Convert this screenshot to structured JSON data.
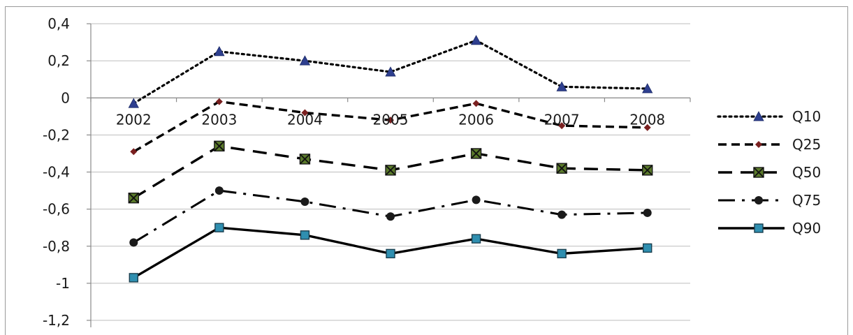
{
  "chart_data": {
    "type": "line",
    "categories": [
      "2002",
      "2003",
      "2004",
      "2005",
      "2006",
      "2007",
      "2008"
    ],
    "ylim": [
      -1.2,
      0.4
    ],
    "yticks": [
      0.4,
      0.2,
      0,
      -0.2,
      -0.4,
      -0.6,
      -0.8,
      -1,
      -1.2
    ],
    "ytick_labels": [
      "0,4",
      "0,2",
      "0",
      "-0,2",
      "-0,4",
      "-0,6",
      "-0,8",
      "-1",
      "-1,2"
    ],
    "grid": true,
    "legend_position": "right",
    "series": [
      {
        "name": "Q10",
        "values": [
          -0.03,
          0.25,
          0.2,
          0.14,
          0.31,
          0.06,
          0.05
        ],
        "line_style": "dotted",
        "marker": "triangle",
        "marker_color": "#2e3f8f",
        "line_color": "#000000"
      },
      {
        "name": "Q25",
        "values": [
          -0.29,
          -0.02,
          -0.08,
          -0.12,
          -0.03,
          -0.15,
          -0.16
        ],
        "line_style": "dashed",
        "marker": "diamond",
        "marker_color": "#7a2020",
        "line_color": "#000000"
      },
      {
        "name": "Q50",
        "values": [
          -0.54,
          -0.26,
          -0.33,
          -0.39,
          -0.3,
          -0.38,
          -0.39
        ],
        "line_style": "long-dash",
        "marker": "square-x",
        "marker_color": "#3f5a1c",
        "line_color": "#000000"
      },
      {
        "name": "Q75",
        "values": [
          -0.78,
          -0.5,
          -0.56,
          -0.64,
          -0.55,
          -0.63,
          -0.62
        ],
        "line_style": "dash-dot",
        "marker": "circle",
        "marker_color": "#1a1a1a",
        "line_color": "#000000"
      },
      {
        "name": "Q90",
        "values": [
          -0.97,
          -0.7,
          -0.74,
          -0.84,
          -0.76,
          -0.84,
          -0.81
        ],
        "line_style": "solid",
        "marker": "square",
        "marker_color": "#2f8fb0",
        "line_color": "#000000"
      }
    ]
  }
}
